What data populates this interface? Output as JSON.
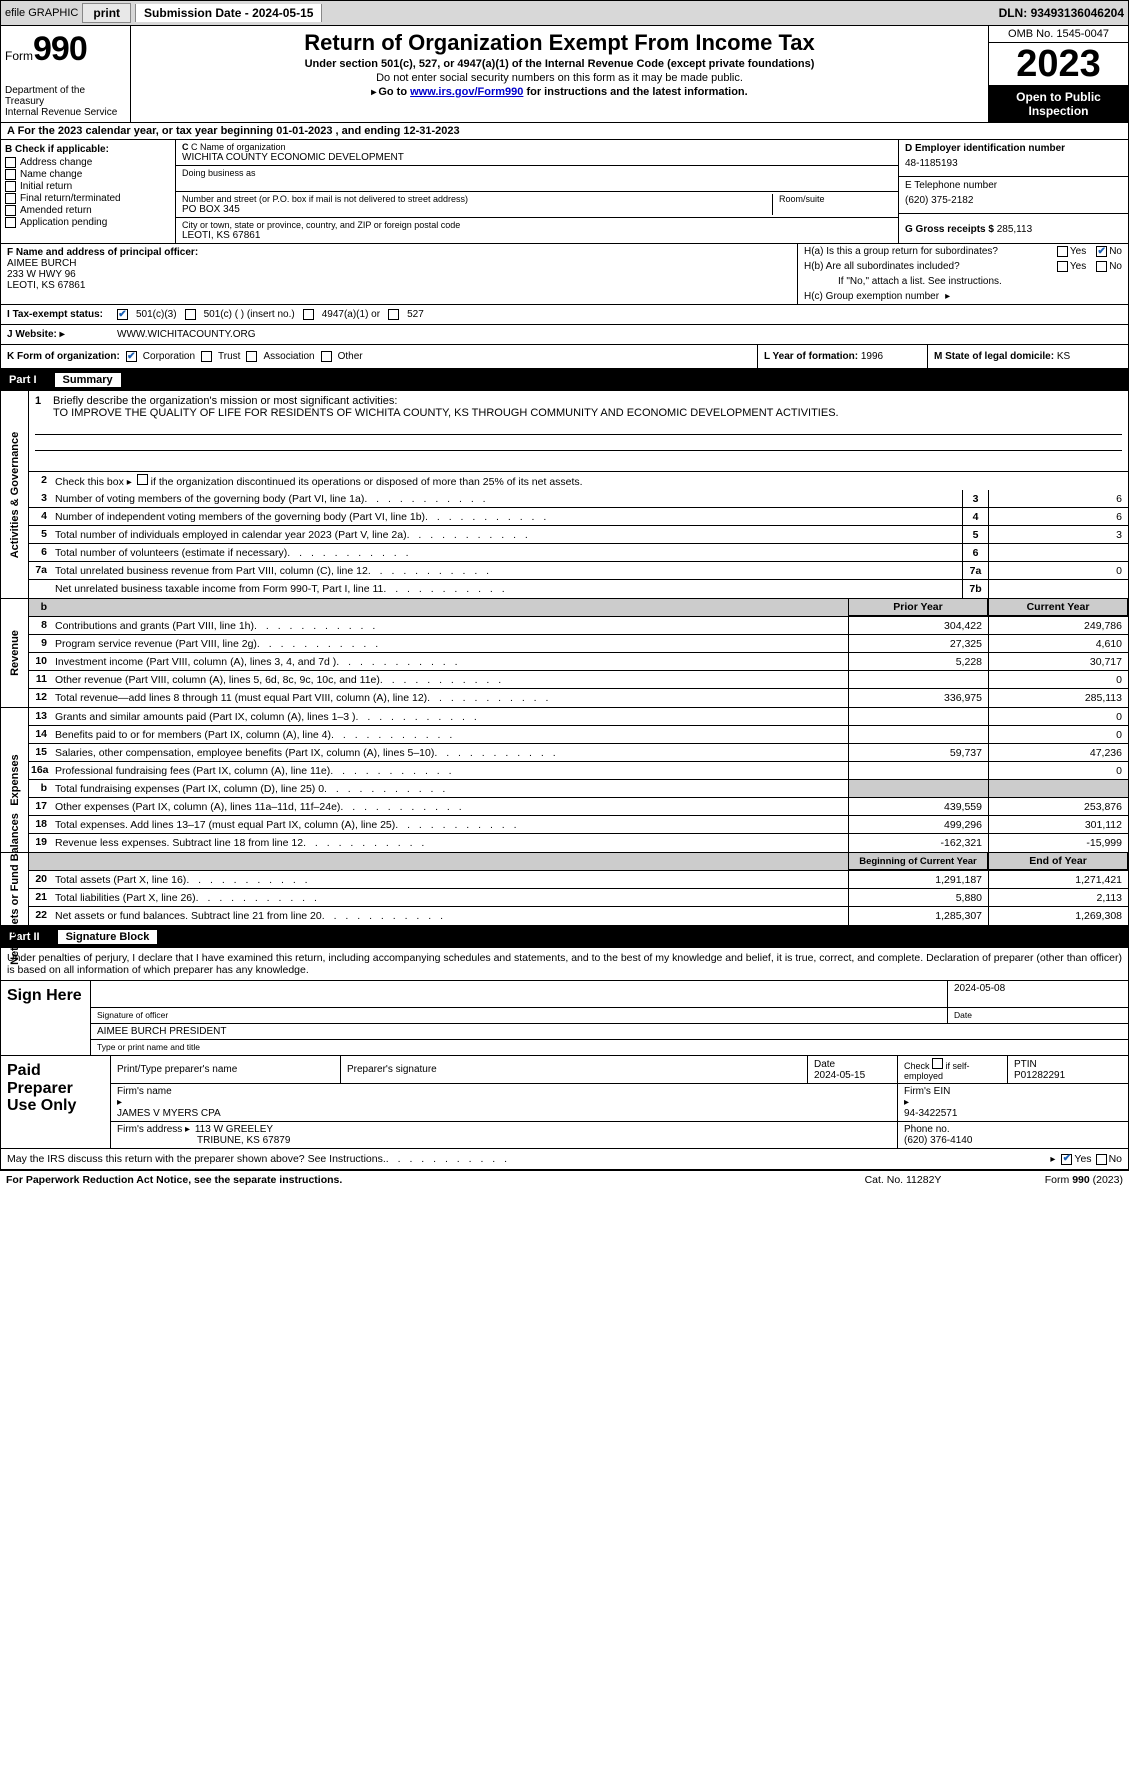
{
  "topbar": {
    "efile": "efile GRAPHIC",
    "print": "print",
    "subdate_label": "Submission Date - ",
    "subdate": "2024-05-15",
    "dln_label": "DLN: ",
    "dln": "93493136046204"
  },
  "header": {
    "form_label": "Form",
    "form_num": "990",
    "dept": "Department of the Treasury\nInternal Revenue Service",
    "title": "Return of Organization Exempt From Income Tax",
    "sub1": "Under section 501(c), 527, or 4947(a)(1) of the Internal Revenue Code (except private foundations)",
    "sub2": "Do not enter social security numbers on this form as it may be made public.",
    "sub3_pre": "Go to ",
    "sub3_link": "www.irs.gov/Form990",
    "sub3_post": " for instructions and the latest information.",
    "omb": "OMB No. 1545-0047",
    "year": "2023",
    "inspect": "Open to Public Inspection"
  },
  "row_a": {
    "pre": "A For the 2023 calendar year, or tax year beginning ",
    "begin": "01-01-2023",
    "mid": "  , and ending ",
    "end": "12-31-2023"
  },
  "col_b": {
    "label": "B Check if applicable:",
    "items": [
      "Address change",
      "Name change",
      "Initial return",
      "Final return/terminated",
      "Amended return",
      "Application pending"
    ]
  },
  "col_c": {
    "name_label": "C Name of organization",
    "name": "WICHITA COUNTY ECONOMIC DEVELOPMENT",
    "dba_label": "Doing business as",
    "addr_label": "Number and street (or P.O. box if mail is not delivered to street address)",
    "addr": "PO BOX 345",
    "room_label": "Room/suite",
    "city_label": "City or town, state or province, country, and ZIP or foreign postal code",
    "city": "LEOTI, KS  67861"
  },
  "col_d": {
    "ein_label": "D Employer identification number",
    "ein": "48-1185193",
    "phone_label": "E Telephone number",
    "phone": "(620) 375-2182",
    "gross_label": "G Gross receipts $ ",
    "gross": "285,113"
  },
  "block_f": {
    "label": "F Name and address of principal officer:",
    "name": "AIMEE BURCH",
    "addr1": "233 W HWY 96",
    "addr2": "LEOTI, KS  67861"
  },
  "block_h": {
    "ha": "H(a)  Is this a group return for subordinates?",
    "hb": "H(b)  Are all subordinates included?",
    "hb_note": "If \"No,\" attach a list. See instructions.",
    "hc": "H(c)  Group exemption number ",
    "yes": "Yes",
    "no": "No"
  },
  "row_i": {
    "label": "Tax-exempt status:",
    "o1": "501(c)(3)",
    "o2": "501(c) (  ) (insert no.)",
    "o3": "4947(a)(1) or",
    "o4": "527"
  },
  "row_j": {
    "label": "Website: ",
    "val": "WWW.WICHITACOUNTY.ORG"
  },
  "row_klm": {
    "k_label": "K Form of organization:",
    "k_opts": [
      "Corporation",
      "Trust",
      "Association",
      "Other"
    ],
    "l_label": "L Year of formation: ",
    "l_val": "1996",
    "m_label": "M State of legal domicile: ",
    "m_val": "KS"
  },
  "part1": {
    "num": "Part I",
    "title": "Summary",
    "sect_labels": [
      "Activities & Governance",
      "Revenue",
      "Expenses",
      "Net Assets or Fund Balances"
    ],
    "line1_label": "Briefly describe the organization's mission or most significant activities:",
    "line1_text": "TO IMPROVE THE QUALITY OF LIFE FOR RESIDENTS OF WICHITA COUNTY, KS THROUGH COMMUNITY AND ECONOMIC DEVELOPMENT ACTIVITIES.",
    "line2": "Check this box      if the organization discontinued its operations or disposed of more than 25% of its net assets.",
    "gov_lines": [
      {
        "n": "3",
        "t": "Number of voting members of the governing body (Part VI, line 1a)",
        "c": "3",
        "v": "6"
      },
      {
        "n": "4",
        "t": "Number of independent voting members of the governing body (Part VI, line 1b)",
        "c": "4",
        "v": "6"
      },
      {
        "n": "5",
        "t": "Total number of individuals employed in calendar year 2023 (Part V, line 2a)",
        "c": "5",
        "v": "3"
      },
      {
        "n": "6",
        "t": "Total number of volunteers (estimate if necessary)",
        "c": "6",
        "v": ""
      },
      {
        "n": "7a",
        "t": "Total unrelated business revenue from Part VIII, column (C), line 12",
        "c": "7a",
        "v": "0"
      },
      {
        "n": " ",
        "t": "Net unrelated business taxable income from Form 990-T, Part I, line 11",
        "c": "7b",
        "v": ""
      }
    ],
    "col_hdr_prior": "Prior Year",
    "col_hdr_curr": "Current Year",
    "rev_lines": [
      {
        "n": "8",
        "t": "Contributions and grants (Part VIII, line 1h)",
        "p": "304,422",
        "c": "249,786"
      },
      {
        "n": "9",
        "t": "Program service revenue (Part VIII, line 2g)",
        "p": "27,325",
        "c": "4,610"
      },
      {
        "n": "10",
        "t": "Investment income (Part VIII, column (A), lines 3, 4, and 7d )",
        "p": "5,228",
        "c": "30,717"
      },
      {
        "n": "11",
        "t": "Other revenue (Part VIII, column (A), lines 5, 6d, 8c, 9c, 10c, and 11e)",
        "p": "",
        "c": "0"
      },
      {
        "n": "12",
        "t": "Total revenue—add lines 8 through 11 (must equal Part VIII, column (A), line 12)",
        "p": "336,975",
        "c": "285,113"
      }
    ],
    "exp_lines": [
      {
        "n": "13",
        "t": "Grants and similar amounts paid (Part IX, column (A), lines 1–3 )",
        "p": "",
        "c": "0"
      },
      {
        "n": "14",
        "t": "Benefits paid to or for members (Part IX, column (A), line 4)",
        "p": "",
        "c": "0"
      },
      {
        "n": "15",
        "t": "Salaries, other compensation, employee benefits (Part IX, column (A), lines 5–10)",
        "p": "59,737",
        "c": "47,236"
      },
      {
        "n": "16a",
        "t": "Professional fundraising fees (Part IX, column (A), line 11e)",
        "p": "",
        "c": "0"
      },
      {
        "n": "b",
        "t": "Total fundraising expenses (Part IX, column (D), line 25) 0",
        "p": "__SHADE__",
        "c": "__SHADE__"
      },
      {
        "n": "17",
        "t": "Other expenses (Part IX, column (A), lines 11a–11d, 11f–24e)",
        "p": "439,559",
        "c": "253,876"
      },
      {
        "n": "18",
        "t": "Total expenses. Add lines 13–17 (must equal Part IX, column (A), line 25)",
        "p": "499,296",
        "c": "301,112"
      },
      {
        "n": "19",
        "t": "Revenue less expenses. Subtract line 18 from line 12",
        "p": "-162,321",
        "c": "-15,999"
      }
    ],
    "col_hdr_beg": "Beginning of Current Year",
    "col_hdr_end": "End of Year",
    "net_lines": [
      {
        "n": "20",
        "t": "Total assets (Part X, line 16)",
        "p": "1,291,187",
        "c": "1,271,421"
      },
      {
        "n": "21",
        "t": "Total liabilities (Part X, line 26)",
        "p": "5,880",
        "c": "2,113"
      },
      {
        "n": "22",
        "t": "Net assets or fund balances. Subtract line 21 from line 20",
        "p": "1,285,307",
        "c": "1,269,308"
      }
    ]
  },
  "part2": {
    "num": "Part II",
    "title": "Signature Block",
    "intro": "Under penalties of perjury, I declare that I have examined this return, including accompanying schedules and statements, and to the best of my knowledge and belief, it is true, correct, and complete. Declaration of preparer (other than officer) is based on all information of which preparer has any knowledge."
  },
  "sign": {
    "label": "Sign Here",
    "sig_label": "Signature of officer",
    "date_label": "Date",
    "date": "2024-05-08",
    "name": "AIMEE BURCH  PRESIDENT",
    "name_label": "Type or print name and title"
  },
  "paid": {
    "label": "Paid Preparer Use Only",
    "pname_label": "Print/Type preparer's name",
    "psig_label": "Preparer's signature",
    "pdate_label": "Date",
    "pdate": "2024-05-15",
    "pcheck_label": "Check         if self-employed",
    "ptin_label": "PTIN",
    "ptin": "P01282291",
    "firm_name_label": "Firm's name   ",
    "firm_name": "JAMES V MYERS CPA",
    "firm_ein_label": "Firm's EIN  ",
    "firm_ein": "94-3422571",
    "firm_addr_label": "Firm's address ",
    "firm_addr1": "113 W GREELEY",
    "firm_addr2": "TRIBUNE, KS  67879",
    "phone_label": "Phone no. ",
    "phone": "(620) 376-4140"
  },
  "discuss": {
    "text": "May the IRS discuss this return with the preparer shown above? See Instructions.",
    "yes": "Yes",
    "no": "No"
  },
  "footer": {
    "l": "For Paperwork Reduction Act Notice, see the separate instructions.",
    "c": "Cat. No. 11282Y",
    "r": "Form 990 (2023)"
  }
}
